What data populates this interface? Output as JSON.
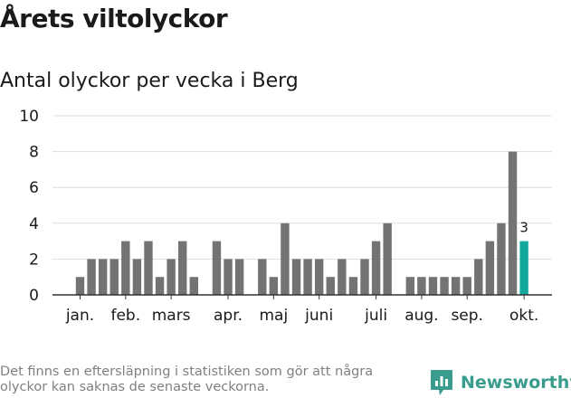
{
  "header": {
    "title": "Årets viltolyckor",
    "subtitle": "Antal olyckor per vecka i Berg"
  },
  "colors": {
    "bar": "#737373",
    "highlight": "#13a89e",
    "grid": "#dddddd",
    "text": "#1a1a1a",
    "brand": "#3a9c8c"
  },
  "chart_data": {
    "type": "bar",
    "title": "Antal olyckor per vecka i Berg",
    "xlabel": "",
    "ylabel": "",
    "ylim": [
      0,
      10
    ],
    "yticks": [
      0,
      2,
      4,
      6,
      8,
      10
    ],
    "grid": true,
    "weeks": [
      1,
      2,
      3,
      4,
      5,
      6,
      7,
      8,
      9,
      10,
      11,
      12,
      13,
      14,
      15,
      16,
      17,
      18,
      19,
      20,
      21,
      22,
      23,
      24,
      25,
      26,
      27,
      28,
      29,
      30,
      31,
      32,
      33,
      34,
      35,
      36,
      37,
      38,
      39,
      40,
      41,
      42,
      43,
      44
    ],
    "values": [
      1,
      2,
      2,
      2,
      3,
      2,
      3,
      1,
      2,
      3,
      1,
      0,
      3,
      2,
      2,
      0,
      2,
      1,
      4,
      2,
      2,
      2,
      1,
      2,
      1,
      2,
      3,
      4,
      0,
      1,
      1,
      1,
      1,
      1,
      1,
      2,
      3,
      4,
      8,
      3,
      null,
      null,
      null,
      null
    ],
    "month_labels": [
      {
        "label": "jan.",
        "week": 1
      },
      {
        "label": "feb.",
        "week": 5
      },
      {
        "label": "mars",
        "week": 9
      },
      {
        "label": "apr.",
        "week": 14
      },
      {
        "label": "maj",
        "week": 18
      },
      {
        "label": "juni",
        "week": 22
      },
      {
        "label": "juli",
        "week": 27
      },
      {
        "label": "aug.",
        "week": 31
      },
      {
        "label": "sep.",
        "week": 35
      },
      {
        "label": "okt.",
        "week": 40
      }
    ],
    "highlight_week": 40,
    "highlight_label": "3"
  },
  "footer": {
    "note": "Det finns en eftersläpning i statistiken som gör att några olyckor kan saknas de senaste veckorna.",
    "brand": "Newsworthy"
  }
}
